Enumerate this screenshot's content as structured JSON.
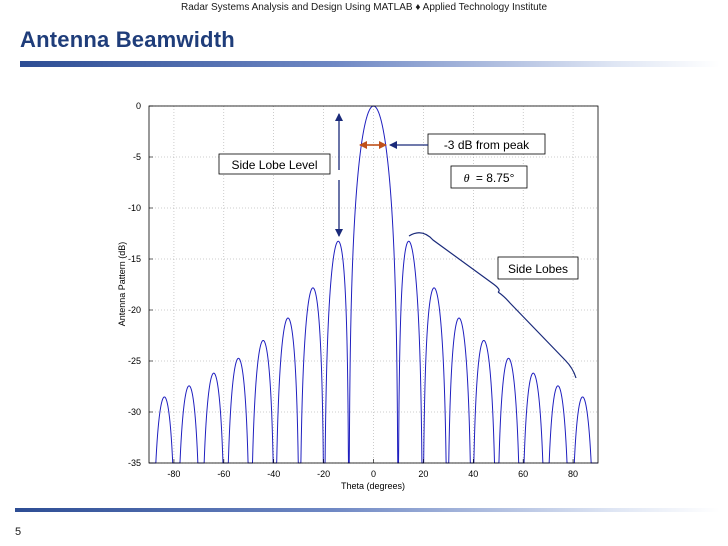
{
  "slide": {
    "header": "Radar Systems Analysis and Design Using MATLAB ♦ Applied Technology Institute",
    "title": "Antenna Beamwidth",
    "page_number": "5"
  },
  "annotations": {
    "side_lobe_level": "Side Lobe Level",
    "minus3db": "-3 dB from peak",
    "theta_symbol": "θ",
    "theta_value": "= 8.75°",
    "side_lobes": "Side Lobes"
  },
  "colors": {
    "title": "#1f3d7a",
    "accent_rule": "#2d4d94",
    "curve": "#1f1fbf",
    "beamwidth_arrow": "#c0501a",
    "annotation_line": "#1a2a7a"
  },
  "chart_data": {
    "type": "line",
    "title": "",
    "xlabel": "Theta (degrees)",
    "ylabel": "Antenna Pattern (dB)",
    "xlim": [
      -90,
      90
    ],
    "ylim": [
      -35,
      0
    ],
    "xticks": [
      -80,
      -60,
      -40,
      -20,
      0,
      20,
      40,
      60,
      80
    ],
    "yticks": [
      0,
      -5,
      -10,
      -15,
      -20,
      -25,
      -30,
      -35
    ],
    "grid": true,
    "series": [
      {
        "function": "20*log10(|sin(pi*u)/(pi*u)|), u = 0.886*theta/8.75, floored at -35",
        "beamwidth_deg": 8.75,
        "peak_db": 0,
        "first_sidelobe_db": -13.26,
        "sidelobe_peaks_deg": [
          -82.5,
          -72.5,
          -62.5,
          -52.5,
          -42.5,
          -32.5,
          -22.5,
          -12.8,
          12.8,
          22.5,
          32.5,
          42.5,
          52.5,
          62.5,
          72.5,
          82.5
        ],
        "sidelobe_peaks_db": [
          -28.6,
          -27.6,
          -26.4,
          -24.9,
          -22.8,
          -20.2,
          -17.8,
          -13.3,
          -13.3,
          -17.8,
          -20.2,
          -22.8,
          -24.9,
          -26.4,
          -27.6,
          -28.6
        ]
      }
    ]
  }
}
